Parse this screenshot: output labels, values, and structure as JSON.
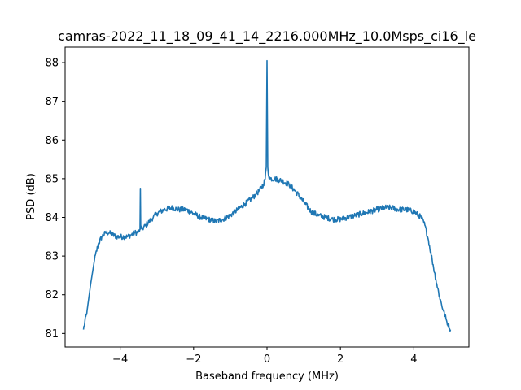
{
  "chart_data": {
    "type": "line",
    "title": "camras-2022_11_18_09_41_14_2216.000MHz_10.0Msps_ci16_le",
    "xlabel": "Baseband frequency (MHz)",
    "ylabel": "PSD (dB)",
    "xlim": [
      -5.5,
      5.5
    ],
    "ylim": [
      80.65,
      88.4
    ],
    "xticks": [
      -4,
      -2,
      0,
      2,
      4
    ],
    "xtick_labels": [
      "−4",
      "−2",
      "0",
      "2",
      "4"
    ],
    "yticks": [
      81,
      82,
      83,
      84,
      85,
      86,
      87,
      88
    ],
    "ytick_labels": [
      "81",
      "82",
      "83",
      "84",
      "85",
      "86",
      "87",
      "88"
    ],
    "grid": false,
    "series": [
      {
        "color": "#1f77b4",
        "x": [
          -5.0,
          -4.9,
          -4.8,
          -4.7,
          -4.6,
          -4.5,
          -4.4,
          -4.3,
          -4.2,
          -4.1,
          -4.0,
          -3.9,
          -3.8,
          -3.7,
          -3.6,
          -3.5,
          -3.46,
          -3.45,
          -3.44,
          -3.4,
          -3.3,
          -3.2,
          -3.1,
          -3.0,
          -2.8,
          -2.6,
          -2.4,
          -2.2,
          -2.0,
          -1.8,
          -1.6,
          -1.4,
          -1.2,
          -1.0,
          -0.8,
          -0.6,
          -0.4,
          -0.3,
          -0.2,
          -0.1,
          -0.05,
          -0.02,
          0.0,
          0.02,
          0.05,
          0.1,
          0.2,
          0.4,
          0.6,
          0.8,
          1.0,
          1.2,
          1.4,
          1.6,
          1.8,
          2.0,
          2.2,
          2.4,
          2.6,
          2.8,
          3.0,
          3.2,
          3.4,
          3.6,
          3.8,
          4.0,
          4.2,
          4.3,
          4.4,
          4.5,
          4.6,
          4.7,
          4.8,
          4.9,
          5.0
        ],
        "y": [
          81.1,
          81.6,
          82.3,
          82.9,
          83.3,
          83.5,
          83.6,
          83.6,
          83.55,
          83.5,
          83.5,
          83.5,
          83.5,
          83.55,
          83.6,
          83.62,
          83.7,
          84.75,
          83.7,
          83.7,
          83.8,
          83.9,
          84.0,
          84.1,
          84.2,
          84.25,
          84.2,
          84.2,
          84.1,
          84.0,
          83.95,
          83.9,
          83.95,
          84.05,
          84.2,
          84.35,
          84.5,
          84.6,
          84.7,
          84.85,
          85.0,
          85.3,
          88.05,
          85.3,
          85.05,
          85.0,
          85.0,
          84.95,
          84.85,
          84.65,
          84.4,
          84.15,
          84.05,
          84.0,
          83.95,
          83.95,
          84.0,
          84.05,
          84.1,
          84.15,
          84.2,
          84.25,
          84.25,
          84.2,
          84.2,
          84.15,
          84.0,
          83.8,
          83.4,
          82.9,
          82.4,
          81.95,
          81.6,
          81.3,
          81.1
        ]
      }
    ]
  }
}
